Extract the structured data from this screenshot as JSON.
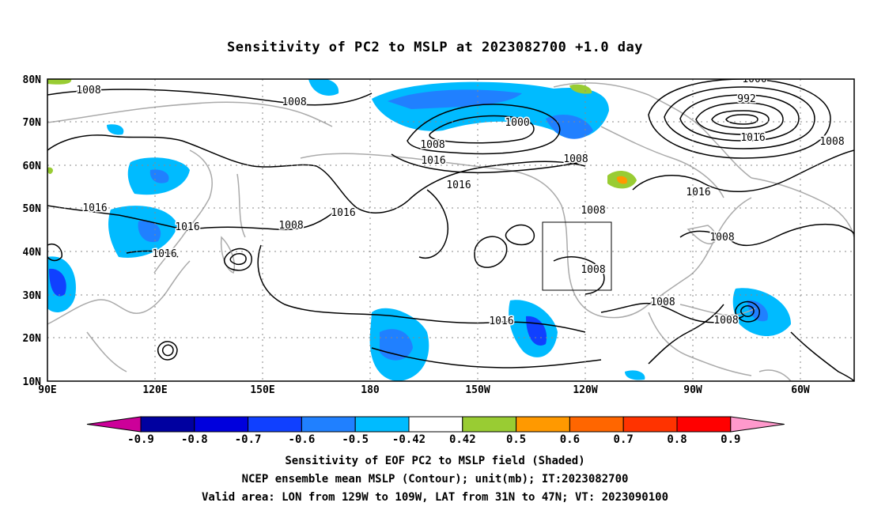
{
  "title": "Sensitivity of PC2 to MSLP at 2023082700 +1.0 day",
  "map": {
    "lat_labels": [
      "80N",
      "70N",
      "60N",
      "50N",
      "40N",
      "30N",
      "20N",
      "10N"
    ],
    "lon_labels": [
      "90E",
      "120E",
      "150E",
      "180",
      "150W",
      "120W",
      "90W",
      "60W"
    ],
    "contour_labels": [
      "1008",
      "1008",
      "1000",
      "1008",
      "1016",
      "1016",
      "1008",
      "1000",
      "992",
      "1016",
      "1008",
      "1016",
      "1016",
      "1016",
      "1008",
      "1016",
      "1016",
      "1008",
      "1008",
      "1016",
      "1008",
      "1008",
      "1008"
    ],
    "valid_area_box": {
      "lon_from": "129W",
      "lon_to": "109W",
      "lat_from": "31N",
      "lat_to": "47N"
    }
  },
  "colorbar": {
    "labels": [
      "-0.9",
      "-0.8",
      "-0.7",
      "-0.6",
      "-0.5",
      "-0.42",
      "0.42",
      "0.5",
      "0.6",
      "0.7",
      "0.8",
      "0.9"
    ],
    "colors": [
      "#cc0099",
      "#0000a0",
      "#0000dd",
      "#1040ff",
      "#2080ff",
      "#00bbff",
      "#ffffff",
      "#99cc33",
      "#ff9900",
      "#ff6600",
      "#ff3300",
      "#ff0000",
      "#ff99cc"
    ]
  },
  "captions": {
    "line1": "Sensitivity of EOF PC2 to MSLP field (Shaded)",
    "line2": "NCEP ensemble mean MSLP (Contour); unit(mb); IT:2023082700",
    "line3": "Valid area: LON from 129W to 109W, LAT from 31N to 47N; VT: 2023090100"
  }
}
